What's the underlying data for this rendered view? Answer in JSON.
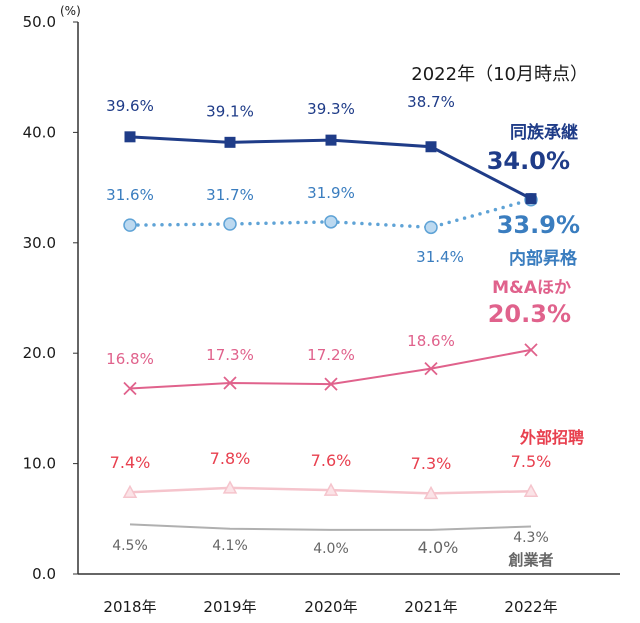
{
  "chart_data": {
    "type": "line",
    "title": "2022年（10月時点）",
    "unit_label": "(%)",
    "categories": [
      "2018年",
      "2019年",
      "2020年",
      "2021年",
      "2022年"
    ],
    "ylim": [
      0,
      50
    ],
    "yticks": [
      "0.0",
      "10.0",
      "20.0",
      "30.0",
      "40.0",
      "50.0"
    ],
    "grid": false,
    "series": [
      {
        "name": "同族承継",
        "values": [
          39.6,
          39.1,
          39.3,
          38.7,
          34.0
        ],
        "labels": [
          "39.6%",
          "39.1%",
          "39.3%",
          "38.7%",
          "34.0%"
        ],
        "color": "#1f3c88",
        "marker": "square",
        "line_style": "solid"
      },
      {
        "name": "内部昇格",
        "values": [
          31.6,
          31.7,
          31.9,
          31.4,
          33.9
        ],
        "labels": [
          "31.6%",
          "31.7%",
          "31.9%",
          "31.4%",
          "33.9%"
        ],
        "color": "#5fa3d6",
        "label_color": "#3a7dbf",
        "marker": "circle",
        "line_style": "dotted"
      },
      {
        "name": "M&Aほか",
        "values": [
          16.8,
          17.3,
          17.2,
          18.6,
          20.3
        ],
        "labels": [
          "16.8%",
          "17.3%",
          "17.2%",
          "18.6%",
          "20.3%"
        ],
        "color": "#e0628c",
        "marker": "cross",
        "line_style": "solid"
      },
      {
        "name": "外部招聘",
        "values": [
          7.4,
          7.8,
          7.6,
          7.3,
          7.5
        ],
        "labels": [
          "7.4%",
          "7.8%",
          "7.6%",
          "7.3%",
          "7.5%"
        ],
        "color": "#f5c4cc",
        "label_color": "#e8404f",
        "marker": "triangle",
        "line_style": "solid"
      },
      {
        "name": "創業者",
        "values": [
          4.5,
          4.1,
          4.0,
          4.0,
          4.3
        ],
        "labels": [
          "4.5%",
          "4.1%",
          "4.0%",
          "4.0%",
          "4.3%"
        ],
        "color": "#b0b0b0",
        "label_color": "#666666",
        "marker": "none",
        "line_style": "solid"
      }
    ]
  }
}
